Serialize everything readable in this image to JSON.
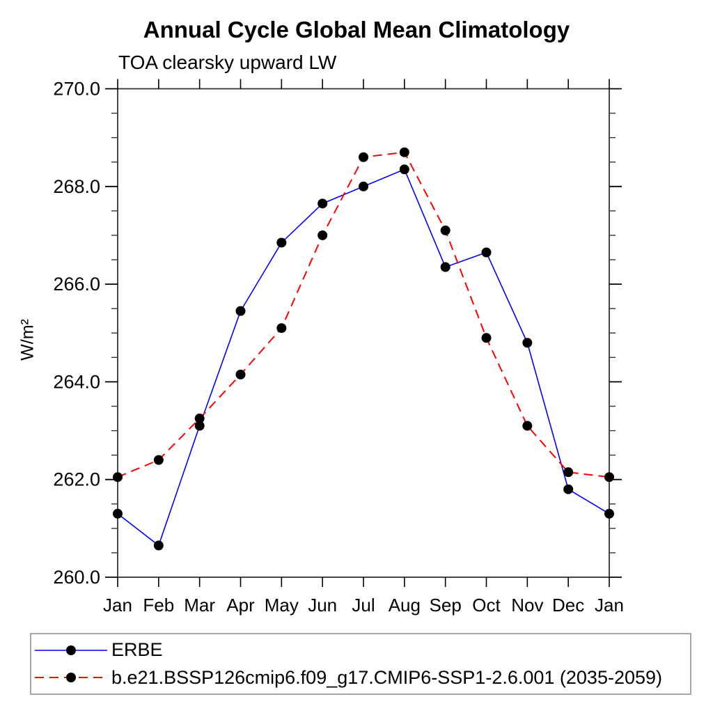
{
  "title": "Annual Cycle Global Mean Climatology",
  "subtitle": "TOA clearsky upward LW",
  "ylabel": "W/m²",
  "legend": {
    "entries": [
      {
        "label": "ERBE",
        "color": "#0000ff",
        "line_style": "solid",
        "marker": "black-dot"
      },
      {
        "label": "b.e21.BSSP126cmip6.f09_g17.CMIP6-SSP1-2.6.001 (2035-2059)",
        "color": "#ff0000",
        "line_style": "dashed",
        "marker": "black-dot"
      }
    ]
  },
  "colors": {
    "erbe_line": "#0000ff",
    "model_line": "#ff0000",
    "marker": "#000000",
    "axis": "#333333",
    "tick": "#000000",
    "legend_border": "#a6a6a6",
    "background": "#ffffff"
  },
  "chart_data": {
    "type": "line",
    "title": "Annual Cycle Global Mean Climatology",
    "subtitle": "TOA clearsky upward LW",
    "xlabel": "",
    "ylabel": "W/m²",
    "categories": [
      "Jan",
      "Feb",
      "Mar",
      "Apr",
      "May",
      "Jun",
      "Jul",
      "Aug",
      "Sep",
      "Oct",
      "Nov",
      "Dec",
      "Jan"
    ],
    "series": [
      {
        "name": "ERBE",
        "color": "#0000ff",
        "line_style": "solid",
        "marker": "circle",
        "values": [
          261.3,
          260.65,
          263.1,
          265.45,
          266.85,
          267.65,
          268.0,
          268.35,
          266.35,
          266.65,
          264.8,
          261.8,
          261.3
        ]
      },
      {
        "name": "b.e21.BSSP126cmip6.f09_g17.CMIP6-SSP1-2.6.001 (2035-2059)",
        "color": "#ff0000",
        "line_style": "dashed",
        "marker": "circle",
        "values": [
          262.05,
          262.4,
          263.25,
          264.15,
          265.1,
          267.0,
          268.6,
          268.7,
          267.1,
          264.9,
          263.1,
          262.15,
          262.05
        ]
      }
    ],
    "ylim": [
      260.0,
      270.0
    ],
    "yticks": [
      {
        "value": 260.0,
        "label": "260.0"
      },
      {
        "value": 262.0,
        "label": "262.0"
      },
      {
        "value": 264.0,
        "label": "264.0"
      },
      {
        "value": 266.0,
        "label": "266.0"
      },
      {
        "value": 268.0,
        "label": "268.0"
      },
      {
        "value": 270.0,
        "label": "270.0"
      }
    ],
    "ytick_minor_step": 0.5,
    "grid": false,
    "legend_position": "bottom"
  }
}
